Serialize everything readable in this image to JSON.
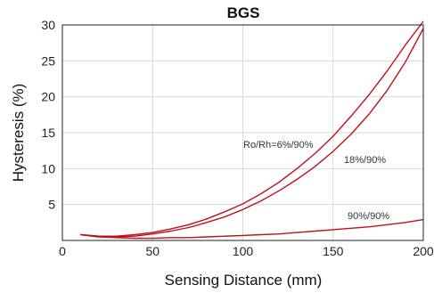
{
  "chart_data": {
    "type": "line",
    "title": "BGS",
    "xlabel": "Sensing Distance (mm)",
    "ylabel": "Hysteresis (%)",
    "xlim": [
      0,
      200
    ],
    "ylim": [
      0,
      30
    ],
    "x_ticks": [
      "0",
      "50",
      "100",
      "150",
      "200"
    ],
    "y_ticks": [
      "5",
      "10",
      "15",
      "20",
      "25",
      "30"
    ],
    "grid": true,
    "legend": "none",
    "line_color": "#c0101e",
    "annotations": [
      "Ro/Rh=6%/90%",
      "18%/90%",
      "90%/90%"
    ],
    "series": [
      {
        "name": "Ro/Rh=6%/90%",
        "x": [
          10,
          20,
          30,
          40,
          50,
          60,
          70,
          80,
          90,
          100,
          110,
          120,
          130,
          140,
          150,
          160,
          170,
          180,
          190,
          200
        ],
        "y": [
          0.8,
          0.6,
          0.6,
          0.8,
          1.1,
          1.6,
          2.2,
          3.0,
          4.0,
          5.1,
          6.5,
          8.1,
          10.0,
          12.1,
          14.5,
          17.3,
          20.3,
          23.6,
          27.2,
          30.5
        ]
      },
      {
        "name": "18%/90%",
        "x": [
          10,
          20,
          30,
          40,
          50,
          60,
          70,
          80,
          90,
          100,
          110,
          120,
          130,
          140,
          150,
          160,
          170,
          180,
          190,
          200
        ],
        "y": [
          0.8,
          0.6,
          0.5,
          0.6,
          0.9,
          1.3,
          1.8,
          2.5,
          3.3,
          4.3,
          5.5,
          6.9,
          8.5,
          10.3,
          12.4,
          14.8,
          17.6,
          20.9,
          24.8,
          29.5
        ]
      },
      {
        "name": "90%/90%",
        "x": [
          10,
          20,
          30,
          40,
          50,
          60,
          70,
          80,
          90,
          100,
          110,
          120,
          130,
          140,
          150,
          160,
          170,
          180,
          190,
          200
        ],
        "y": [
          0.8,
          0.5,
          0.4,
          0.3,
          0.3,
          0.4,
          0.4,
          0.5,
          0.6,
          0.7,
          0.8,
          0.9,
          1.1,
          1.3,
          1.5,
          1.7,
          1.9,
          2.2,
          2.5,
          2.9
        ]
      }
    ]
  }
}
